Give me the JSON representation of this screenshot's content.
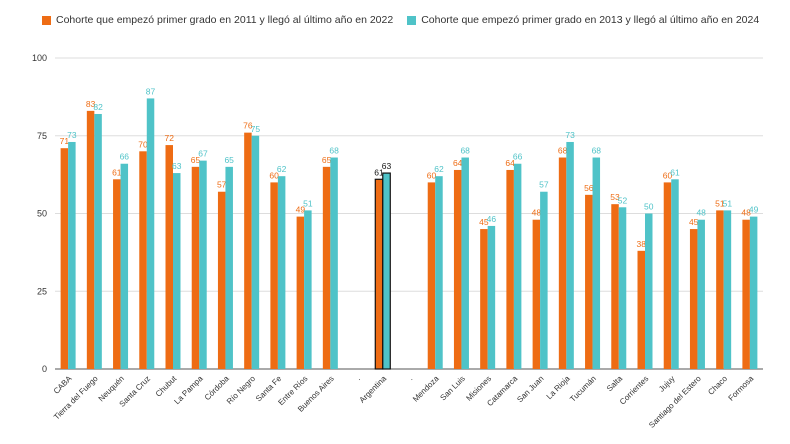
{
  "colors": {
    "series1": "#ee6c14",
    "series2": "#4fc3c8",
    "grid": "#dddddd",
    "axis": "#555555",
    "text": "#333333",
    "highlight_stroke": "#111111"
  },
  "chart_data": {
    "type": "bar",
    "title": "",
    "xlabel": "",
    "ylabel": "",
    "ylim": [
      0,
      100
    ],
    "yticks": [
      0,
      25,
      50,
      75,
      100
    ],
    "grid": true,
    "legend_position": "top-left",
    "highlight_category": "Argentina",
    "categories": [
      "CABA",
      "Tierra del Fuego",
      "Neuquén",
      "Santa Cruz",
      "Chubut",
      "La Pampa",
      "Córdoba",
      "Río Negro",
      "Santa Fe",
      "Entre Ríos",
      "Buenos Aires",
      ".",
      "Argentina",
      ".",
      "Mendoza",
      "San Luis",
      "Misiones",
      "Catamarca",
      "San Juan",
      "La Rioja",
      "Tucumán",
      "Salta",
      "Corrientes",
      "Jujuy",
      "Santiago del Estero",
      "Chaco",
      "Formosa"
    ],
    "series": [
      {
        "name": "Cohorte que empezó primer grado en 2011 y llegó al último año en 2022",
        "values": [
          71,
          83,
          61,
          70,
          72,
          65,
          57,
          76,
          60,
          49,
          65,
          null,
          61,
          null,
          60,
          64,
          45,
          64,
          48,
          68,
          56,
          53,
          38,
          60,
          45,
          51,
          48
        ]
      },
      {
        "name": "Cohorte que empezó primer grado en 2013 y llegó al último año en 2024",
        "values": [
          73,
          82,
          66,
          87,
          63,
          67,
          65,
          75,
          62,
          51,
          68,
          null,
          63,
          null,
          62,
          68,
          46,
          66,
          57,
          73,
          68,
          52,
          50,
          61,
          48,
          51,
          49
        ]
      }
    ]
  }
}
